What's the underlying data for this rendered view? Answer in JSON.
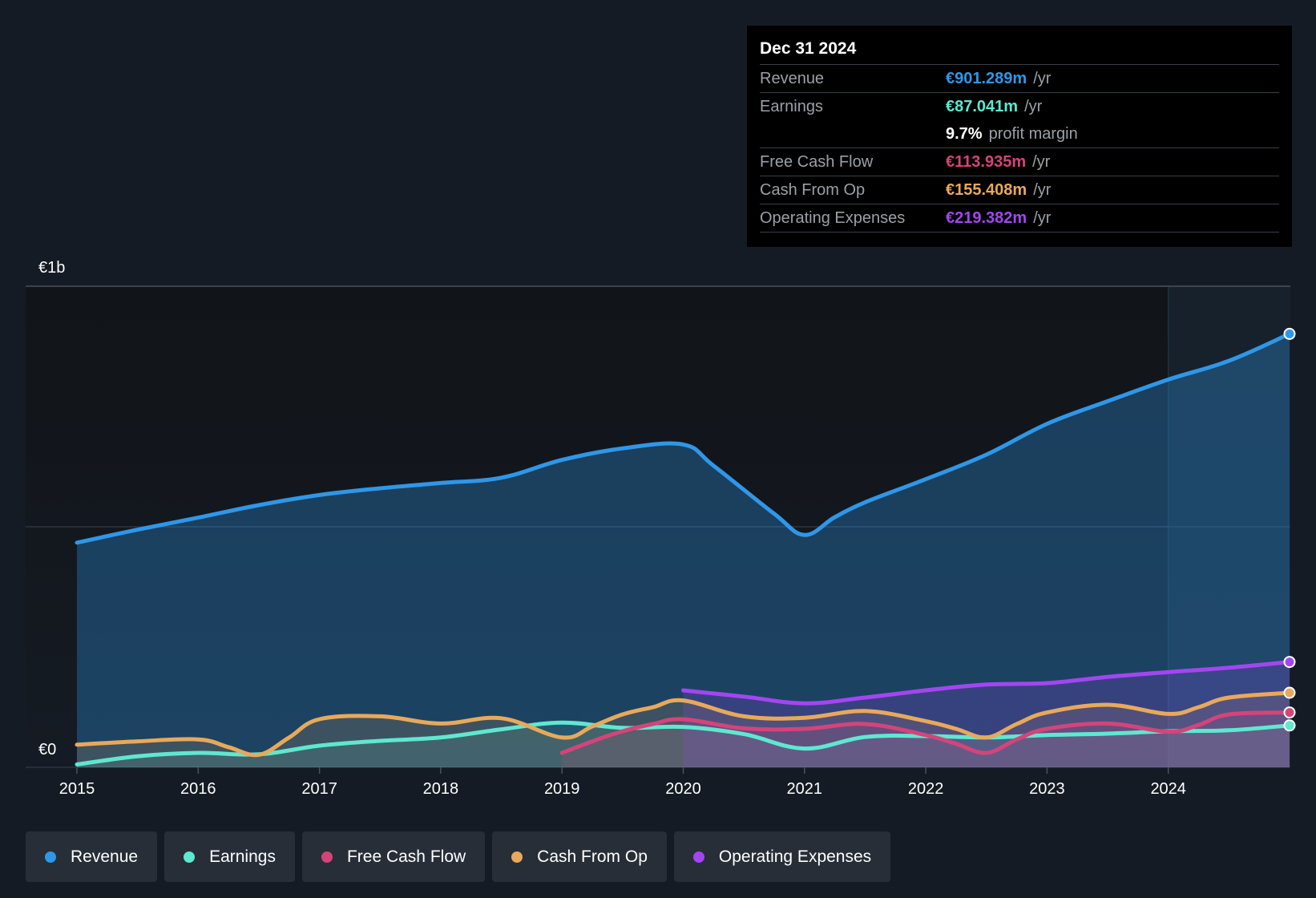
{
  "tooltip": {
    "date": "Dec 31 2024",
    "rows": [
      {
        "label": "Revenue",
        "value": "€901.289m",
        "unit": "/yr"
      },
      {
        "label": "Earnings",
        "value": "€87.041m",
        "unit": "/yr"
      },
      {
        "label": "Free Cash Flow",
        "value": "€113.935m",
        "unit": "/yr"
      },
      {
        "label": "Cash From Op",
        "value": "€155.408m",
        "unit": "/yr"
      },
      {
        "label": "Operating Expenses",
        "value": "€219.382m",
        "unit": "/yr"
      }
    ],
    "margin": {
      "value": "9.7%",
      "label": "profit margin"
    }
  },
  "legend": [
    {
      "label": "Revenue",
      "color": "#2f97e8"
    },
    {
      "label": "Earnings",
      "color": "#5ee8d0"
    },
    {
      "label": "Free Cash Flow",
      "color": "#d4447a"
    },
    {
      "label": "Cash From Op",
      "color": "#e8a95a"
    },
    {
      "label": "Operating Expenses",
      "color": "#a246f0"
    }
  ],
  "chart_data": {
    "type": "area",
    "x_label": "",
    "y_label": "",
    "y_tick_labels": [
      "€0",
      "€1b"
    ],
    "ylim": [
      0,
      1000
    ],
    "xlim": [
      2014.95,
      2025.0
    ],
    "x_ticks": [
      2015,
      2016,
      2017,
      2018,
      2019,
      2020,
      2021,
      2022,
      2023,
      2024
    ],
    "y_gridlines": [
      0,
      500,
      1000
    ],
    "forecast_shade_start": 2024.0,
    "series": [
      {
        "name": "Revenue",
        "color": "#2f97e8",
        "fill": true,
        "x": [
          2015.0,
          2015.5,
          2016.0,
          2016.5,
          2017.0,
          2017.5,
          2018.0,
          2018.5,
          2019.0,
          2019.5,
          2020.0,
          2020.25,
          2020.75,
          2021.0,
          2021.25,
          2021.5,
          2022.0,
          2022.5,
          2023.0,
          2023.5,
          2024.0,
          2024.5,
          2025.0
        ],
        "y": [
          467,
          494,
          519,
          545,
          566,
          580,
          591,
          602,
          639,
          663,
          671,
          627,
          527,
          483,
          520,
          551,
          599,
          650,
          714,
          761,
          806,
          845,
          901
        ]
      },
      {
        "name": "Earnings",
        "color": "#5ee8d0",
        "fill": true,
        "x": [
          2015.0,
          2015.5,
          2016.0,
          2016.5,
          2017.0,
          2017.5,
          2018.0,
          2018.5,
          2019.0,
          2019.5,
          2020.0,
          2020.5,
          2021.0,
          2021.5,
          2022.0,
          2022.5,
          2023.0,
          2023.5,
          2024.0,
          2024.5,
          2025.0
        ],
        "y": [
          6,
          23,
          30,
          27,
          45,
          55,
          62,
          79,
          93,
          82,
          84,
          69,
          39,
          63,
          65,
          62,
          67,
          70,
          75,
          77,
          87
        ]
      },
      {
        "name": "Free Cash Flow",
        "color": "#d4447a",
        "fill": true,
        "x": [
          2019.0,
          2019.25,
          2019.5,
          2019.75,
          2020.0,
          2020.5,
          2021.0,
          2021.5,
          2022.0,
          2022.25,
          2022.5,
          2022.75,
          2023.0,
          2023.5,
          2024.0,
          2024.25,
          2024.5,
          2025.0
        ],
        "y": [
          30,
          54,
          75,
          90,
          100,
          81,
          80,
          90,
          67,
          49,
          30,
          58,
          80,
          91,
          74,
          88,
          110,
          114
        ]
      },
      {
        "name": "Cash From Op",
        "color": "#e8a95a",
        "fill": true,
        "x": [
          2015.0,
          2015.5,
          2016.0,
          2016.25,
          2016.5,
          2016.75,
          2017.0,
          2017.5,
          2018.0,
          2018.5,
          2019.0,
          2019.25,
          2019.5,
          2019.75,
          2020.0,
          2020.5,
          2021.0,
          2021.5,
          2022.0,
          2022.25,
          2022.5,
          2022.75,
          2023.0,
          2023.5,
          2024.0,
          2024.25,
          2024.5,
          2025.0
        ],
        "y": [
          47,
          54,
          58,
          42,
          26,
          62,
          100,
          106,
          91,
          102,
          62,
          85,
          110,
          125,
          139,
          106,
          103,
          117,
          96,
          80,
          62,
          90,
          114,
          130,
          111,
          125,
          145,
          155
        ]
      },
      {
        "name": "Operating Expenses",
        "color": "#a246f0",
        "fill": true,
        "x": [
          2020.0,
          2020.5,
          2021.0,
          2021.5,
          2022.0,
          2022.5,
          2023.0,
          2023.5,
          2024.0,
          2024.5,
          2025.0
        ],
        "y": [
          160,
          147,
          133,
          145,
          160,
          172,
          175,
          188,
          198,
          207,
          219
        ]
      }
    ]
  }
}
